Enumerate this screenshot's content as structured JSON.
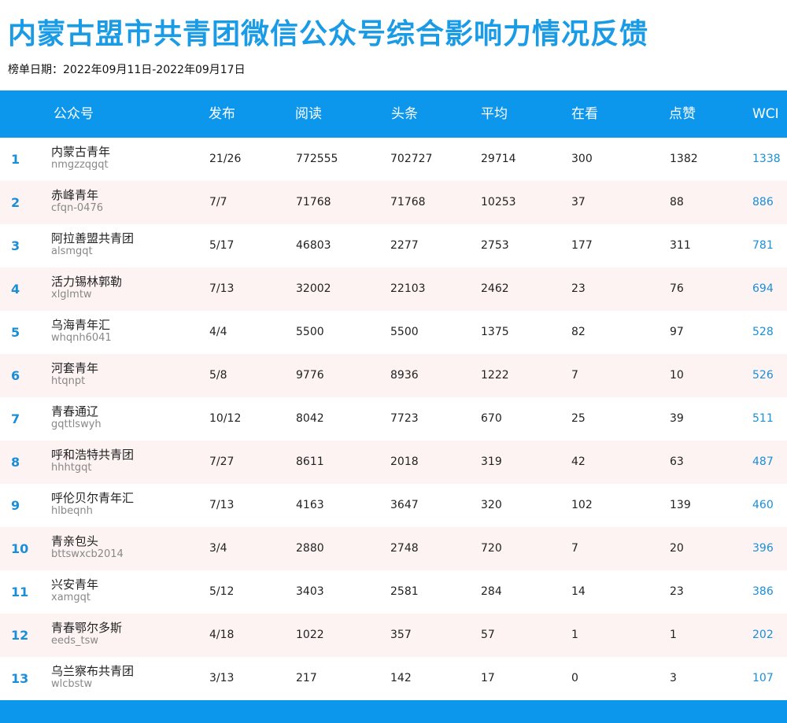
{
  "title": "内蒙古盟市共青团微信公众号综合影响力情况反馈",
  "date_line": "榜单日期：2022年09月11日-2022年09月17日",
  "colors": {
    "accent": "#0d97ec",
    "title": "#1a9be6",
    "row_alt": "#fdf3f3",
    "rank": "#1a8fd8"
  },
  "headers": {
    "account": "公众号",
    "publish": "发布",
    "read": "阅读",
    "headline": "头条",
    "average": "平均",
    "looking": "在看",
    "like": "点赞",
    "wci": "WCI"
  },
  "rows": [
    {
      "rank": "1",
      "name": "内蒙古青年",
      "id": "nmgzzqgqt",
      "publish": "21/26",
      "read": "772555",
      "headline": "702727",
      "average": "29714",
      "looking": "300",
      "like": "1382",
      "wci": "1338"
    },
    {
      "rank": "2",
      "name": "赤峰青年",
      "id": "cfqn-0476",
      "publish": "7/7",
      "read": "71768",
      "headline": "71768",
      "average": "10253",
      "looking": "37",
      "like": "88",
      "wci": "886"
    },
    {
      "rank": "3",
      "name": "阿拉善盟共青团",
      "id": "alsmgqt",
      "publish": "5/17",
      "read": "46803",
      "headline": "2277",
      "average": "2753",
      "looking": "177",
      "like": "311",
      "wci": "781"
    },
    {
      "rank": "4",
      "name": "活力锡林郭勒",
      "id": "xlglmtw",
      "publish": "7/13",
      "read": "32002",
      "headline": "22103",
      "average": "2462",
      "looking": "23",
      "like": "76",
      "wci": "694"
    },
    {
      "rank": "5",
      "name": "乌海青年汇",
      "id": "whqnh6041",
      "publish": "4/4",
      "read": "5500",
      "headline": "5500",
      "average": "1375",
      "looking": "82",
      "like": "97",
      "wci": "528"
    },
    {
      "rank": "6",
      "name": "河套青年",
      "id": "htqnpt",
      "publish": "5/8",
      "read": "9776",
      "headline": "8936",
      "average": "1222",
      "looking": "7",
      "like": "10",
      "wci": "526"
    },
    {
      "rank": "7",
      "name": "青春通辽",
      "id": "gqttlswyh",
      "publish": "10/12",
      "read": "8042",
      "headline": "7723",
      "average": "670",
      "looking": "25",
      "like": "39",
      "wci": "511"
    },
    {
      "rank": "8",
      "name": "呼和浩特共青团",
      "id": "hhhtgqt",
      "publish": "7/27",
      "read": "8611",
      "headline": "2018",
      "average": "319",
      "looking": "42",
      "like": "63",
      "wci": "487"
    },
    {
      "rank": "9",
      "name": "呼伦贝尔青年汇",
      "id": "hlbeqnh",
      "publish": "7/13",
      "read": "4163",
      "headline": "3647",
      "average": "320",
      "looking": "102",
      "like": "139",
      "wci": "460"
    },
    {
      "rank": "10",
      "name": "青亲包头",
      "id": "bttswxcb2014",
      "publish": "3/4",
      "read": "2880",
      "headline": "2748",
      "average": "720",
      "looking": "7",
      "like": "20",
      "wci": "396"
    },
    {
      "rank": "11",
      "name": "兴安青年",
      "id": "xamgqt",
      "publish": "5/12",
      "read": "3403",
      "headline": "2581",
      "average": "284",
      "looking": "14",
      "like": "23",
      "wci": "386"
    },
    {
      "rank": "12",
      "name": "青春鄂尔多斯",
      "id": "eeds_tsw",
      "publish": "4/18",
      "read": "1022",
      "headline": "357",
      "average": "57",
      "looking": "1",
      "like": "1",
      "wci": "202"
    },
    {
      "rank": "13",
      "name": "乌兰察布共青团",
      "id": "wlcbstw",
      "publish": "3/13",
      "read": "217",
      "headline": "142",
      "average": "17",
      "looking": "0",
      "like": "3",
      "wci": "107"
    }
  ]
}
